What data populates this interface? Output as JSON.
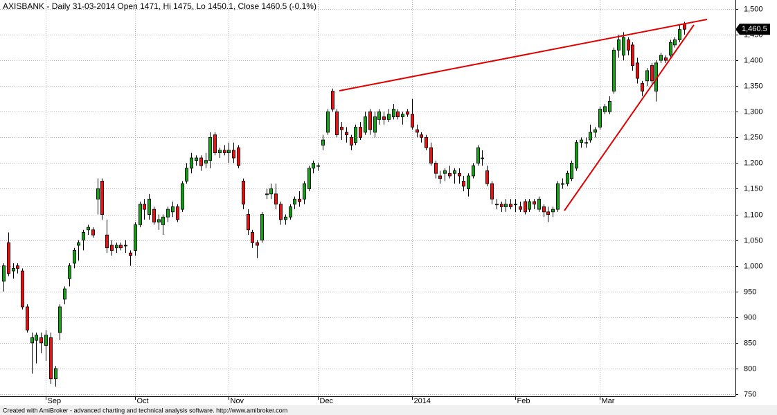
{
  "chart_data": {
    "type": "candlestick",
    "title": "AXISBANK - Daily 31-03-2014 Open 1471, Hi 1475, Lo 1450.1, Close 1460.5 (-0.1%)",
    "footer": "Created with AmiBroker - advanced charting and technical analysis software. http://www.amibroker.com",
    "last_label": "1,460.5",
    "categories": [
      null,
      null,
      null,
      null,
      null,
      null,
      null,
      null,
      null,
      "Sep",
      null,
      null,
      null,
      null,
      null,
      null,
      null,
      null,
      null,
      null,
      null,
      null,
      null,
      null,
      null,
      null,
      null,
      null,
      "Oct",
      null,
      null,
      null,
      null,
      null,
      null,
      null,
      null,
      null,
      null,
      null,
      null,
      null,
      null,
      null,
      null,
      null,
      null,
      null,
      "Nov",
      null,
      null,
      null,
      null,
      null,
      null,
      null,
      null,
      null,
      null,
      null,
      null,
      null,
      null,
      null,
      null,
      null,
      null,
      "Dec",
      null,
      null,
      null,
      null,
      null,
      null,
      null,
      null,
      null,
      null,
      null,
      null,
      null,
      null,
      null,
      null,
      null,
      null,
      null,
      "2014",
      null,
      null,
      null,
      null,
      null,
      null,
      null,
      null,
      null,
      null,
      null,
      null,
      null,
      null,
      null,
      null,
      null,
      null,
      null,
      null,
      null,
      "Feb",
      null,
      null,
      null,
      null,
      null,
      null,
      null,
      null,
      null,
      null,
      null,
      null,
      null,
      null,
      null,
      null,
      null,
      "Mar",
      null,
      null,
      null,
      null,
      null,
      null,
      null,
      null,
      null,
      null,
      null,
      null,
      null,
      null,
      null,
      null,
      null,
      null
    ],
    "open": [
      970,
      1045,
      990,
      1000,
      990,
      920,
      850,
      855,
      860,
      845,
      860,
      780,
      870,
      935,
      975,
      1005,
      1040,
      1050,
      1070,
      1070,
      1130,
      1165,
      1060,
      1040,
      1035,
      1040,
      1040,
      1025,
      1030,
      1080,
      1120,
      1100,
      1110,
      1085,
      1080,
      1095,
      1105,
      1115,
      1110,
      1165,
      1190,
      1205,
      1210,
      1200,
      1205,
      1255,
      1220,
      1225,
      1220,
      1225,
      1230,
      1165,
      1100,
      1065,
      1045,
      1050,
      1140,
      1140,
      1140,
      1120,
      1090,
      1095,
      1120,
      1130,
      1130,
      1150,
      1190,
      1195,
      1235,
      1260,
      1340,
      1300,
      1270,
      1260,
      1250,
      1240,
      1270,
      1260,
      1300,
      1260,
      1285,
      1290,
      1285,
      1290,
      1300,
      1290,
      1300,
      1295,
      1265,
      1255,
      1250,
      1230,
      1200,
      1175,
      1180,
      1180,
      1180,
      1180,
      1165,
      1150,
      1175,
      1200,
      1210,
      1185,
      1160,
      1120,
      1120,
      1115,
      1120,
      1120,
      1115,
      1125,
      1110,
      1125,
      1110,
      1115,
      1105,
      1105,
      1110,
      1160,
      1160,
      1170,
      1190,
      1240,
      1240,
      1245,
      1260,
      1270,
      1300,
      1300,
      1340,
      1420,
      1410,
      1440,
      1430,
      1395,
      1355,
      1360,
      1390,
      1340,
      1400,
      1405,
      1410,
      1430,
      1440,
      1471
    ],
    "high": [
      1005,
      1065,
      1005,
      1005,
      995,
      925,
      870,
      870,
      870,
      875,
      870,
      805,
      925,
      960,
      1005,
      1035,
      1050,
      1070,
      1080,
      1075,
      1170,
      1170,
      1090,
      1050,
      1045,
      1045,
      1050,
      1030,
      1085,
      1125,
      1130,
      1140,
      1115,
      1100,
      1100,
      1115,
      1125,
      1120,
      1165,
      1200,
      1220,
      1215,
      1215,
      1220,
      1260,
      1260,
      1230,
      1235,
      1240,
      1240,
      1235,
      1170,
      1110,
      1070,
      1050,
      1105,
      1150,
      1160,
      1160,
      1125,
      1100,
      1120,
      1135,
      1145,
      1165,
      1195,
      1205,
      1200,
      1255,
      1305,
      1345,
      1305,
      1280,
      1270,
      1255,
      1275,
      1280,
      1300,
      1305,
      1300,
      1305,
      1300,
      1305,
      1315,
      1305,
      1300,
      1305,
      1325,
      1275,
      1260,
      1255,
      1240,
      1205,
      1185,
      1190,
      1195,
      1190,
      1190,
      1175,
      1180,
      1200,
      1235,
      1225,
      1195,
      1165,
      1130,
      1125,
      1130,
      1130,
      1130,
      1125,
      1130,
      1130,
      1130,
      1135,
      1120,
      1115,
      1115,
      1165,
      1170,
      1185,
      1205,
      1245,
      1250,
      1250,
      1275,
      1270,
      1310,
      1315,
      1330,
      1425,
      1450,
      1455,
      1445,
      1435,
      1405,
      1360,
      1385,
      1395,
      1400,
      1415,
      1410,
      1440,
      1445,
      1470,
      1475
    ],
    "low": [
      950,
      980,
      975,
      985,
      915,
      870,
      790,
      810,
      830,
      815,
      770,
      765,
      855,
      925,
      960,
      995,
      1010,
      1030,
      1060,
      1055,
      1100,
      1090,
      1025,
      1020,
      1025,
      1030,
      1025,
      1000,
      1020,
      1075,
      1090,
      1090,
      1080,
      1070,
      1060,
      1085,
      1095,
      1085,
      1105,
      1160,
      1180,
      1195,
      1185,
      1190,
      1190,
      1215,
      1210,
      1215,
      1200,
      1200,
      1190,
      1110,
      1060,
      1035,
      1015,
      1045,
      1130,
      1130,
      1110,
      1080,
      1080,
      1090,
      1110,
      1115,
      1120,
      1145,
      1180,
      1185,
      1225,
      1255,
      1300,
      1250,
      1245,
      1240,
      1225,
      1235,
      1245,
      1255,
      1255,
      1250,
      1275,
      1275,
      1280,
      1285,
      1285,
      1275,
      1290,
      1265,
      1250,
      1240,
      1225,
      1195,
      1170,
      1160,
      1165,
      1170,
      1160,
      1160,
      1145,
      1135,
      1170,
      1195,
      1195,
      1155,
      1120,
      1110,
      1105,
      1105,
      1110,
      1105,
      1105,
      1100,
      1105,
      1110,
      1105,
      1095,
      1085,
      1095,
      1105,
      1150,
      1155,
      1165,
      1185,
      1230,
      1230,
      1240,
      1250,
      1265,
      1295,
      1295,
      1335,
      1405,
      1400,
      1410,
      1380,
      1355,
      1330,
      1350,
      1355,
      1320,
      1395,
      1395,
      1405,
      1425,
      1435,
      1450.1
    ],
    "close": [
      1000,
      985,
      995,
      995,
      920,
      875,
      860,
      865,
      850,
      865,
      780,
      800,
      920,
      955,
      1000,
      1030,
      1045,
      1065,
      1075,
      1060,
      1150,
      1100,
      1035,
      1030,
      1040,
      1035,
      1040,
      1020,
      1080,
      1120,
      1110,
      1130,
      1085,
      1090,
      1095,
      1110,
      1115,
      1090,
      1160,
      1190,
      1210,
      1210,
      1195,
      1205,
      1250,
      1220,
      1225,
      1220,
      1225,
      1210,
      1195,
      1120,
      1070,
      1045,
      1040,
      1100,
      1140,
      1150,
      1120,
      1090,
      1095,
      1115,
      1130,
      1125,
      1160,
      1190,
      1200,
      1195,
      1245,
      1300,
      1305,
      1255,
      1265,
      1255,
      1235,
      1270,
      1250,
      1290,
      1265,
      1290,
      1300,
      1285,
      1295,
      1305,
      1290,
      1295,
      1295,
      1270,
      1260,
      1250,
      1230,
      1200,
      1180,
      1170,
      1185,
      1175,
      1185,
      1175,
      1155,
      1175,
      1195,
      1230,
      1210,
      1160,
      1130,
      1120,
      1115,
      1120,
      1115,
      1120,
      1110,
      1105,
      1125,
      1120,
      1130,
      1105,
      1100,
      1110,
      1160,
      1160,
      1180,
      1200,
      1240,
      1245,
      1240,
      1260,
      1265,
      1305,
      1310,
      1320,
      1420,
      1440,
      1445,
      1420,
      1390,
      1365,
      1340,
      1380,
      1360,
      1395,
      1410,
      1400,
      1435,
      1440,
      1460,
      1460.5
    ],
    "up_color": "#14a014",
    "down_color": "#e81010",
    "ylim": [
      750,
      1500
    ],
    "yticks": [
      750,
      800,
      850,
      900,
      950,
      {
        "value": 1000,
        "label": "1,000"
      },
      {
        "value": 1050,
        "label": "1,050"
      },
      {
        "value": 1100,
        "label": "1,100"
      },
      {
        "value": 1150,
        "label": "1,150"
      },
      {
        "value": 1200,
        "label": "1,200"
      },
      {
        "value": 1250,
        "label": "1,250"
      },
      {
        "value": 1300,
        "label": "1,300"
      },
      {
        "value": 1350,
        "label": "1,350"
      },
      {
        "value": 1400,
        "label": "1,400"
      },
      {
        "value": 1450,
        "label": "1,450"
      },
      {
        "value": 1500,
        "label": "1,500"
      }
    ],
    "grid": true
  }
}
